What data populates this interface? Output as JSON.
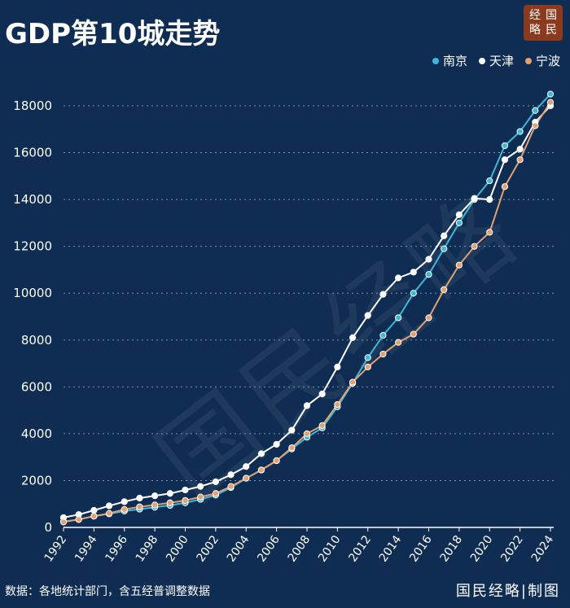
{
  "title": "GDP第10城走势",
  "logo": {
    "chars": [
      "经",
      "国",
      "略",
      "民"
    ]
  },
  "watermark": "国民经略",
  "source": "数据：各地统计部门，含五经普调整数据",
  "brand": "国民经略|制图",
  "chart_data": {
    "type": "line",
    "title": "GDP第10城走势",
    "xlabel": "",
    "ylabel": "",
    "ylim": [
      0,
      18000
    ],
    "yticks": [
      0,
      2000,
      4000,
      6000,
      8000,
      10000,
      12000,
      14000,
      16000,
      18000
    ],
    "x": [
      1992,
      1993,
      1994,
      1995,
      1996,
      1997,
      1998,
      1999,
      2000,
      2001,
      2002,
      2003,
      2004,
      2005,
      2006,
      2007,
      2008,
      2009,
      2010,
      2011,
      2012,
      2013,
      2014,
      2015,
      2016,
      2017,
      2018,
      2019,
      2020,
      2021,
      2022,
      2023,
      2024
    ],
    "xticklabels": [
      "1992",
      "1994",
      "1996",
      "1998",
      "2000",
      "2002",
      "2004",
      "2006",
      "2008",
      "2010",
      "2012",
      "2014",
      "2016",
      "2018",
      "2020",
      "2022",
      "2024"
    ],
    "grid": true,
    "legend_position": "top-right",
    "series": [
      {
        "name": "南京",
        "color": "#3fb8d8",
        "values": [
          250,
          340,
          480,
          580,
          700,
          780,
          860,
          940,
          1050,
          1200,
          1380,
          1700,
          2100,
          2450,
          2850,
          3350,
          3850,
          4250,
          5150,
          6150,
          7250,
          8200,
          8950,
          10000,
          10800,
          11900,
          13000,
          14000,
          14800,
          16300,
          16900,
          17800,
          18500
        ]
      },
      {
        "name": "天津",
        "color": "#ffffff",
        "values": [
          420,
          550,
          730,
          920,
          1100,
          1250,
          1350,
          1450,
          1600,
          1750,
          1950,
          2250,
          2600,
          3150,
          3550,
          4150,
          5200,
          5700,
          6850,
          8100,
          9050,
          9950,
          10650,
          10900,
          11450,
          12450,
          13350,
          14050,
          14000,
          15700,
          16150,
          17300,
          18000
        ]
      },
      {
        "name": "宁波",
        "color": "#e3a070",
        "values": [
          230,
          340,
          480,
          600,
          770,
          880,
          960,
          1050,
          1150,
          1300,
          1450,
          1750,
          2100,
          2450,
          2850,
          3400,
          4000,
          4350,
          5250,
          6200,
          6850,
          7400,
          7900,
          8250,
          8950,
          10150,
          11200,
          12000,
          12600,
          14550,
          15700,
          17150,
          18150
        ]
      }
    ]
  }
}
